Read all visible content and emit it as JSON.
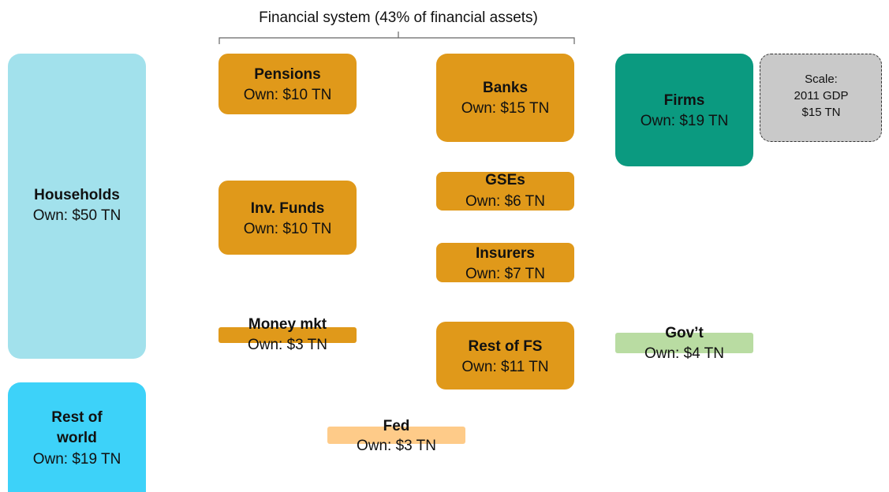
{
  "title": "Financial system (43% of financial assets)",
  "nodes": [
    {
      "label": "Households",
      "own": "Own: $50 TN"
    },
    {
      "label": "Rest of world",
      "own": "Own: $19 TN"
    },
    {
      "label": "Pensions",
      "own": "Own: $10 TN"
    },
    {
      "label": "Inv. Funds",
      "own": "Own: $10 TN"
    },
    {
      "label": "Money mkt",
      "own": "Own: $3 TN"
    },
    {
      "label": "Banks",
      "own": "Own: $15 TN"
    },
    {
      "label": "GSEs",
      "own": "Own: $6 TN"
    },
    {
      "label": "Insurers",
      "own": "Own: $7 TN"
    },
    {
      "label": "Rest of FS",
      "own": "Own: $11 TN"
    },
    {
      "label": "Fed",
      "own": "Own: $3 TN"
    },
    {
      "label": "Firms",
      "own": "Own: $19 TN"
    },
    {
      "label": "Gov’t",
      "own": "Own: $4 TN"
    }
  ],
  "scale": {
    "lines": [
      "Scale:",
      "2011 GDP",
      "$15 TN"
    ]
  }
}
